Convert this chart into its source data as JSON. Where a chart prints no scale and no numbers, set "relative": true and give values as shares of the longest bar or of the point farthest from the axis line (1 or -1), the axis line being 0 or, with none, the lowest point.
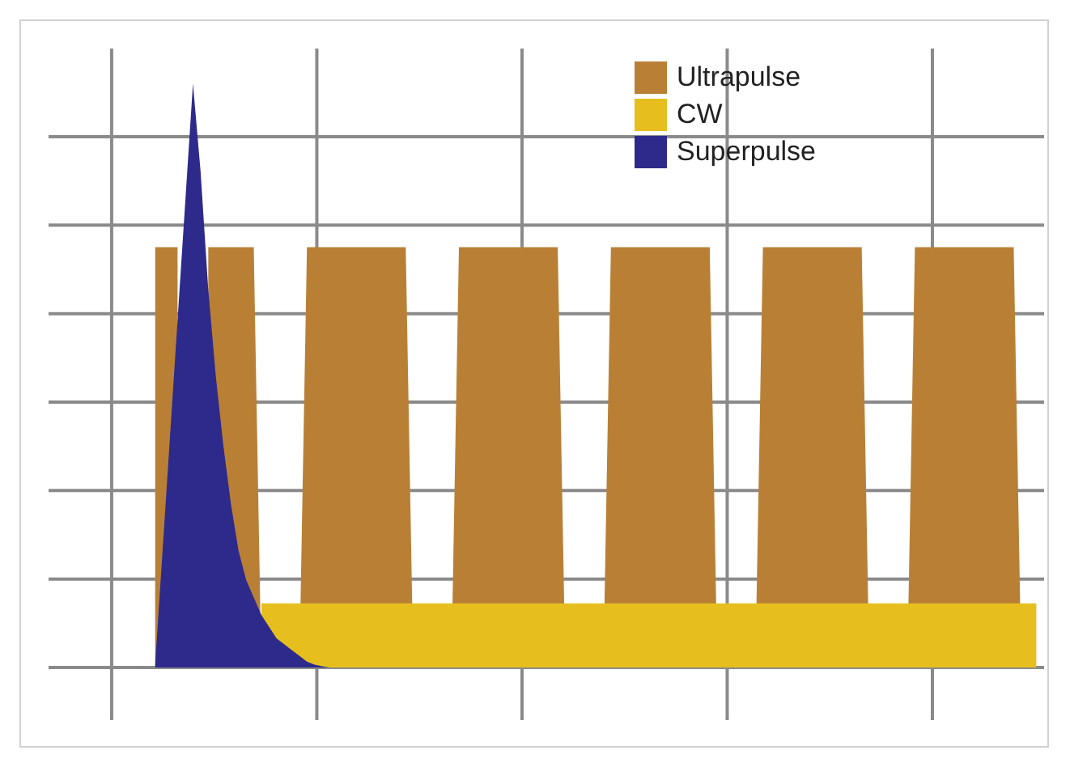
{
  "chart_data": {
    "type": "area",
    "relative": true,
    "grid": true,
    "legend": "top right",
    "tick_labels": false,
    "categories": [
      null,
      null,
      null,
      null,
      null,
      null,
      null,
      null,
      null,
      null,
      null,
      null,
      null,
      null,
      null,
      null,
      null,
      null,
      null,
      null,
      null,
      null,
      null,
      null,
      null,
      null,
      null,
      null,
      null,
      null,
      null,
      null,
      null,
      null,
      null,
      null,
      null,
      null,
      null,
      null,
      null,
      null,
      null,
      null,
      null,
      null,
      null,
      null,
      null,
      null,
      null,
      null,
      null,
      null,
      null,
      null,
      null,
      null,
      null,
      null,
      null,
      null,
      null,
      null,
      null,
      null,
      null,
      null,
      null,
      null,
      null,
      null,
      null,
      null,
      null,
      null,
      null,
      null,
      null,
      null,
      null,
      null,
      null,
      null,
      null,
      null,
      null,
      null,
      null,
      null,
      null,
      null,
      null,
      null,
      null,
      null,
      null,
      null,
      null,
      null,
      null,
      null,
      null,
      null,
      null,
      null,
      null,
      null,
      null,
      null,
      null,
      null,
      null,
      null,
      null,
      null,
      null
    ],
    "series": [
      {
        "name": "Ultrapulse",
        "color": "#b98035",
        "values": [
          0.72,
          0.72,
          0.72,
          0.72,
          null,
          null,
          null,
          0.72,
          0.72,
          0.72,
          0.72,
          0.72,
          0.72,
          0.72,
          0,
          0,
          0,
          0,
          0,
          0,
          0.72,
          0.72,
          0.72,
          0.72,
          0.72,
          0.72,
          0.72,
          0.72,
          0.72,
          0.72,
          0.72,
          0.72,
          0.72,
          0.72,
          0,
          0,
          0,
          0,
          0,
          0,
          0.72,
          0.72,
          0.72,
          0.72,
          0.72,
          0.72,
          0.72,
          0.72,
          0.72,
          0.72,
          0.72,
          0.72,
          0.72,
          0.72,
          0,
          0,
          0,
          0,
          0,
          0,
          0.72,
          0.72,
          0.72,
          0.72,
          0.72,
          0.72,
          0.72,
          0.72,
          0.72,
          0.72,
          0.72,
          0.72,
          0.72,
          0.72,
          0,
          0,
          0,
          0,
          0,
          0,
          0.72,
          0.72,
          0.72,
          0.72,
          0.72,
          0.72,
          0.72,
          0.72,
          0.72,
          0.72,
          0.72,
          0.72,
          0.72,
          0.72,
          0,
          0,
          0,
          0,
          0,
          0,
          0.72,
          0.72,
          0.72,
          0.72,
          0.72,
          0.72,
          0.72,
          0.72,
          0.72,
          0.72,
          0.72,
          0.72,
          0.72,
          0.72,
          0,
          0,
          0
        ]
      },
      {
        "name": "CW",
        "color": "#e6bf1e",
        "values": [
          null,
          null,
          null,
          null,
          null,
          null,
          null,
          null,
          null,
          null,
          null,
          null,
          null,
          null,
          0.11,
          0.11,
          0.11,
          0.11,
          0.11,
          0.11,
          0.11,
          0.11,
          0.11,
          0.11,
          0.11,
          0.11,
          0.11,
          0.11,
          0.11,
          0.11,
          0.11,
          0.11,
          0.11,
          0.11,
          0.11,
          0.11,
          0.11,
          0.11,
          0.11,
          0.11,
          0.11,
          0.11,
          0.11,
          0.11,
          0.11,
          0.11,
          0.11,
          0.11,
          0.11,
          0.11,
          0.11,
          0.11,
          0.11,
          0.11,
          0.11,
          0.11,
          0.11,
          0.11,
          0.11,
          0.11,
          0.11,
          0.11,
          0.11,
          0.11,
          0.11,
          0.11,
          0.11,
          0.11,
          0.11,
          0.11,
          0.11,
          0.11,
          0.11,
          0.11,
          0.11,
          0.11,
          0.11,
          0.11,
          0.11,
          0.11,
          0.11,
          0.11,
          0.11,
          0.11,
          0.11,
          0.11,
          0.11,
          0.11,
          0.11,
          0.11,
          0.11,
          0.11,
          0.11,
          0.11,
          0.11,
          0.11,
          0.11,
          0.11,
          0.11,
          0.11,
          0.11,
          0.11,
          0.11,
          0.11,
          0.11,
          0.11,
          0.11,
          0.11,
          0.11,
          0.11,
          0.11,
          0.11,
          0.11,
          0.11,
          0.11,
          0.11,
          0.11
        ]
      },
      {
        "name": "Superpulse",
        "color": "#2d2a8c",
        "values": [
          0,
          0.2,
          0.4,
          0.6,
          0.8,
          1,
          0.85,
          0.65,
          0.5,
          0.38,
          0.28,
          0.2,
          0.15,
          0.12,
          0.09,
          0.07,
          0.05,
          0.04,
          0.03,
          0.02,
          0.01,
          0.005,
          0.002,
          0,
          null,
          null,
          null,
          null,
          null,
          null,
          null,
          null,
          null,
          null,
          null,
          null,
          null,
          null,
          null,
          null,
          null,
          null,
          null,
          null,
          null,
          null,
          null,
          null,
          null,
          null,
          null,
          null,
          null,
          null,
          null,
          null,
          null,
          null,
          null,
          null,
          null,
          null,
          null,
          null,
          null,
          null,
          null,
          null,
          null,
          null,
          null,
          null,
          null,
          null,
          null,
          null,
          null,
          null,
          null,
          null,
          null,
          null,
          null,
          null,
          null,
          null,
          null,
          null,
          null,
          null,
          null,
          null,
          null,
          null,
          null,
          null,
          null,
          null,
          null,
          null,
          null,
          null,
          null,
          null,
          null,
          null,
          null,
          null,
          null,
          null,
          null,
          null,
          null,
          null,
          null,
          null,
          null
        ]
      }
    ]
  }
}
